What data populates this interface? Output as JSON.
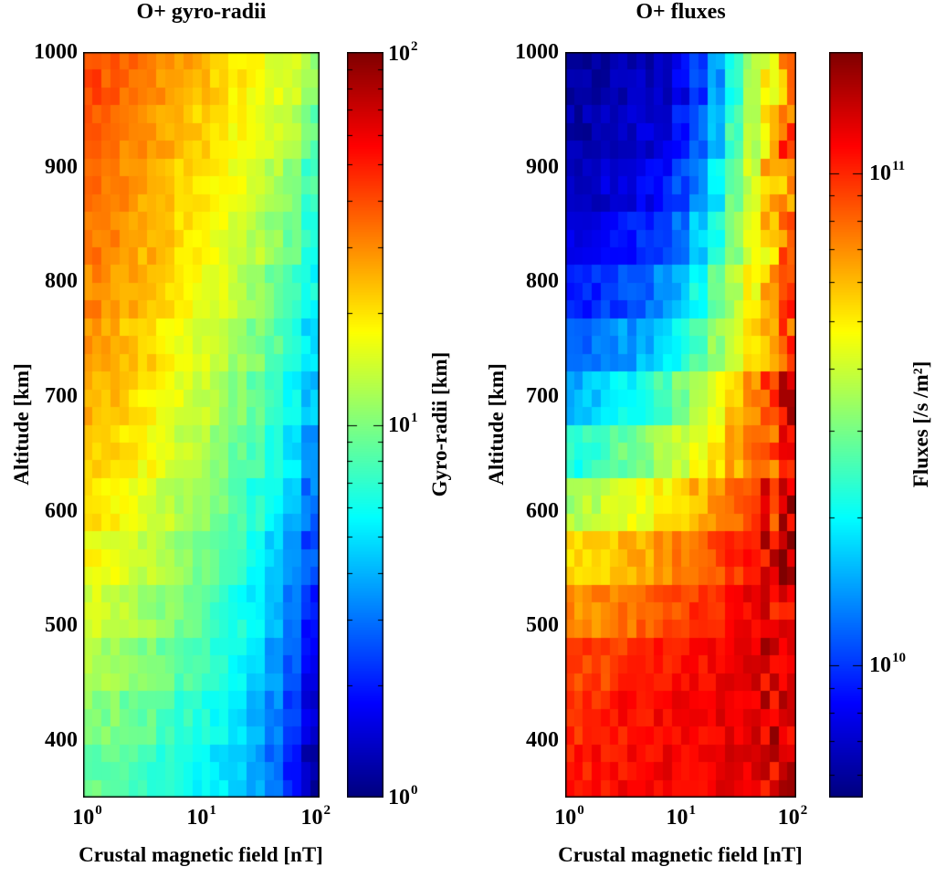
{
  "figure": {
    "background": "#ffffff",
    "text_color": "#000000",
    "frame_color": "#000000"
  },
  "chart_data": [
    {
      "type": "heatmap",
      "title": "O+ gyro-radii",
      "xlabel": "Crustal magnetic field [nT]",
      "ylabel": "Altitude [km]",
      "colormap": "jet",
      "x_axis": {
        "scale": "log",
        "unit": "nT",
        "log_range": [
          0,
          2.07
        ],
        "ticks": [
          {
            "label": "10^0",
            "log": 0
          },
          {
            "label": "10^1",
            "log": 1
          },
          {
            "label": "10^2",
            "log": 2
          }
        ]
      },
      "y_axis": {
        "scale": "linear",
        "unit": "km",
        "range_km": [
          350,
          1000
        ],
        "tick_values": [
          1000,
          900,
          800,
          700,
          600,
          500,
          400
        ]
      },
      "colorbar": {
        "label": "Gyro-radii [km]",
        "scale": "log",
        "unit": "km",
        "log_range": [
          0,
          2
        ],
        "tick_entries": [
          {
            "label": "10^2",
            "log": 2
          },
          {
            "label": "10^1",
            "log": 1
          },
          {
            "label": "10^0",
            "log": 0
          }
        ]
      },
      "grid": {
        "cols": 13,
        "rows": 14,
        "col_centers_log10_nT": [
          0.08,
          0.24,
          0.4,
          0.56,
          0.72,
          0.88,
          1.04,
          1.19,
          1.35,
          1.51,
          1.67,
          1.83,
          1.99
        ],
        "row_centers_km": [
          977,
          930,
          884,
          838,
          791,
          745,
          698,
          652,
          605,
          559,
          513,
          466,
          420,
          373
        ]
      },
      "noise": {
        "base": 0.05,
        "high_cols_from": 12,
        "high": 0.07
      },
      "values_log10": [
        [
          1.62,
          1.58,
          1.55,
          1.5,
          1.45,
          1.42,
          1.38,
          1.33,
          1.28,
          1.24,
          1.2,
          1.15,
          1.08
        ],
        [
          1.58,
          1.55,
          1.5,
          1.46,
          1.42,
          1.38,
          1.34,
          1.29,
          1.25,
          1.2,
          1.15,
          1.1,
          0.95
        ],
        [
          1.55,
          1.52,
          1.47,
          1.43,
          1.39,
          1.35,
          1.3,
          1.26,
          1.21,
          1.16,
          1.1,
          1.02,
          0.88
        ],
        [
          1.52,
          1.48,
          1.44,
          1.4,
          1.36,
          1.31,
          1.27,
          1.22,
          1.17,
          1.11,
          1.04,
          0.95,
          0.82
        ],
        [
          1.48,
          1.45,
          1.41,
          1.37,
          1.32,
          1.28,
          1.23,
          1.18,
          1.12,
          1.06,
          0.98,
          0.88,
          0.76
        ],
        [
          1.44,
          1.41,
          1.37,
          1.33,
          1.28,
          1.24,
          1.19,
          1.13,
          1.07,
          1.0,
          0.92,
          0.82,
          0.7
        ],
        [
          1.4,
          1.37,
          1.33,
          1.28,
          1.24,
          1.19,
          1.14,
          1.08,
          1.02,
          0.94,
          0.86,
          0.76,
          0.62
        ],
        [
          1.35,
          1.32,
          1.28,
          1.24,
          1.19,
          1.14,
          1.09,
          1.03,
          0.96,
          0.89,
          0.8,
          0.7,
          0.55
        ],
        [
          1.3,
          1.27,
          1.23,
          1.19,
          1.14,
          1.09,
          1.04,
          0.98,
          0.91,
          0.83,
          0.74,
          0.63,
          0.48
        ],
        [
          1.24,
          1.21,
          1.17,
          1.13,
          1.08,
          1.04,
          0.98,
          0.92,
          0.85,
          0.77,
          0.68,
          0.56,
          0.4
        ],
        [
          1.17,
          1.14,
          1.11,
          1.07,
          1.02,
          0.98,
          0.93,
          0.87,
          0.8,
          0.72,
          0.62,
          0.5,
          0.32
        ],
        [
          1.1,
          1.07,
          1.04,
          1.0,
          0.96,
          0.92,
          0.87,
          0.81,
          0.75,
          0.67,
          0.57,
          0.44,
          0.25
        ],
        [
          1.02,
          1.0,
          0.97,
          0.94,
          0.9,
          0.86,
          0.81,
          0.76,
          0.7,
          0.62,
          0.52,
          0.38,
          0.18
        ],
        [
          0.95,
          0.93,
          0.9,
          0.87,
          0.84,
          0.8,
          0.76,
          0.71,
          0.65,
          0.57,
          0.47,
          0.32,
          0.1
        ]
      ]
    },
    {
      "type": "heatmap",
      "title": "O+ fluxes",
      "xlabel": "Crustal magnetic field [nT]",
      "ylabel": "Altitude [km]",
      "colormap": "jet",
      "x_axis": {
        "scale": "log",
        "unit": "nT",
        "log_range": [
          0,
          2.07
        ],
        "ticks": [
          {
            "label": "10^0",
            "log": 0
          },
          {
            "label": "10^1",
            "log": 1
          },
          {
            "label": "10^2",
            "log": 2
          }
        ]
      },
      "y_axis": {
        "scale": "linear",
        "unit": "km",
        "range_km": [
          350,
          1000
        ],
        "tick_values": [
          1000,
          900,
          800,
          700,
          600,
          500,
          400
        ]
      },
      "colorbar": {
        "label": "Fluxes [/s /m²]",
        "scale": "log",
        "unit": "/s /m^2",
        "log_range": [
          9.731,
          11.246
        ],
        "tick_entries": [
          {
            "label": "10^11",
            "log": 11
          },
          {
            "label": "10^10",
            "log": 10
          }
        ]
      },
      "grid": {
        "cols": 13,
        "rows": 14,
        "col_centers_log10_nT": [
          0.08,
          0.24,
          0.4,
          0.56,
          0.72,
          0.88,
          1.04,
          1.19,
          1.35,
          1.51,
          1.67,
          1.83,
          1.99
        ],
        "row_centers_km": [
          977,
          930,
          884,
          838,
          791,
          745,
          698,
          652,
          605,
          559,
          513,
          466,
          420,
          373
        ]
      },
      "noise": {
        "base": 0.05,
        "high_cols_from": 11,
        "high": 0.13
      },
      "values_log10": [
        [
          9.78,
          9.78,
          9.8,
          9.8,
          9.82,
          9.85,
          9.9,
          10.0,
          10.15,
          10.35,
          10.55,
          10.7,
          10.8
        ],
        [
          9.8,
          9.8,
          9.82,
          9.83,
          9.85,
          9.88,
          9.95,
          10.05,
          10.2,
          10.4,
          10.58,
          10.72,
          10.95
        ],
        [
          9.83,
          9.84,
          9.86,
          9.88,
          9.9,
          9.95,
          10.02,
          10.12,
          10.28,
          10.45,
          10.6,
          10.72,
          10.85
        ],
        [
          9.88,
          9.9,
          9.92,
          9.95,
          9.98,
          10.03,
          10.1,
          10.22,
          10.35,
          10.5,
          10.63,
          10.75,
          10.9
        ],
        [
          9.95,
          9.97,
          10.0,
          10.03,
          10.08,
          10.13,
          10.2,
          10.32,
          10.44,
          10.56,
          10.68,
          10.78,
          11.0
        ],
        [
          10.05,
          10.08,
          10.12,
          10.15,
          10.2,
          10.26,
          10.33,
          10.42,
          10.52,
          10.62,
          10.72,
          10.82,
          10.95
        ],
        [
          10.18,
          10.22,
          10.26,
          10.3,
          10.35,
          10.4,
          10.47,
          10.55,
          10.65,
          10.75,
          10.85,
          11.0,
          11.1
        ],
        [
          10.35,
          10.38,
          10.42,
          10.46,
          10.5,
          10.55,
          10.6,
          10.66,
          10.72,
          10.8,
          10.88,
          10.95,
          11.05
        ],
        [
          10.55,
          10.58,
          10.6,
          10.63,
          10.66,
          10.7,
          10.74,
          10.79,
          10.84,
          10.9,
          10.96,
          11.02,
          11.15
        ],
        [
          10.72,
          10.74,
          10.76,
          10.78,
          10.8,
          10.83,
          10.86,
          10.9,
          10.94,
          10.98,
          11.03,
          11.08,
          11.2
        ],
        [
          10.85,
          10.86,
          10.88,
          10.89,
          10.91,
          10.93,
          10.95,
          10.98,
          11.01,
          11.04,
          11.07,
          11.1,
          11.05
        ],
        [
          10.95,
          10.96,
          10.97,
          10.98,
          10.99,
          11.0,
          11.02,
          11.04,
          11.06,
          11.08,
          11.1,
          11.12,
          11.15
        ],
        [
          11.0,
          11.01,
          11.02,
          11.03,
          11.04,
          11.05,
          11.06,
          11.07,
          11.08,
          11.09,
          11.1,
          11.12,
          11.08
        ],
        [
          11.02,
          11.03,
          11.04,
          11.05,
          11.05,
          11.06,
          11.07,
          11.08,
          11.08,
          11.09,
          11.1,
          11.11,
          11.12
        ]
      ]
    }
  ]
}
